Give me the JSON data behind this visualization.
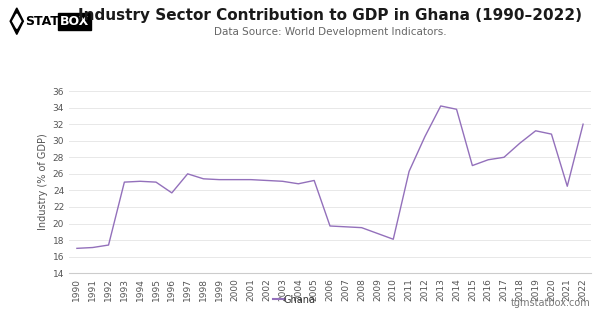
{
  "title": "Industry Sector Contribution to GDP in Ghana (1990–2022)",
  "subtitle": "Data Source: World Development Indicators.",
  "ylabel": "Industry (% of GDP)",
  "watermark": "tgmstatbox.com",
  "legend_label": "Ghana",
  "line_color": "#9370BB",
  "background_color": "#ffffff",
  "plot_bg_color": "#ffffff",
  "years": [
    1990,
    1991,
    1992,
    1993,
    1994,
    1995,
    1996,
    1997,
    1998,
    1999,
    2000,
    2001,
    2002,
    2003,
    2004,
    2005,
    2006,
    2007,
    2008,
    2009,
    2010,
    2011,
    2012,
    2013,
    2014,
    2015,
    2016,
    2017,
    2018,
    2019,
    2020,
    2021,
    2022
  ],
  "values": [
    17.0,
    17.1,
    17.4,
    25.0,
    25.1,
    25.0,
    23.7,
    26.0,
    25.4,
    25.3,
    25.3,
    25.3,
    25.2,
    25.1,
    24.8,
    25.2,
    19.7,
    19.6,
    19.5,
    18.8,
    18.1,
    26.3,
    30.5,
    34.2,
    33.8,
    27.0,
    27.7,
    28.0,
    29.7,
    31.2,
    30.8,
    24.5,
    32.0
  ],
  "ylim": [
    14,
    36
  ],
  "yticks": [
    14,
    16,
    18,
    20,
    22,
    24,
    26,
    28,
    30,
    32,
    34,
    36
  ],
  "grid_color": "#e8e8e8",
  "title_fontsize": 11,
  "subtitle_fontsize": 7.5,
  "axis_fontsize": 6.5,
  "ylabel_fontsize": 7
}
